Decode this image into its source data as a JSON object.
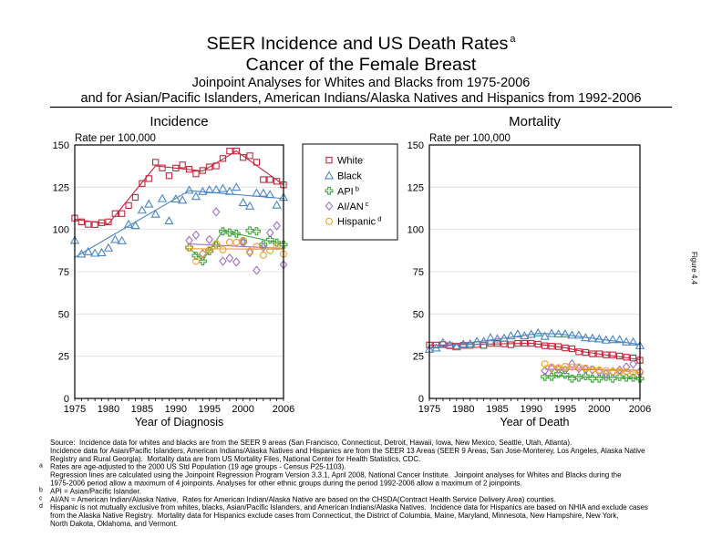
{
  "header": {
    "title": "SEER Incidence and US Death Rates",
    "title_sup": "a",
    "subtitle": "Cancer of the Female Breast",
    "description_line1": "Joinpoint Analyses for Whites and Blacks from 1975-2006",
    "description_line2": "and for Asian/Pacific Islanders, American Indians/Alaska Natives and Hispanics from 1992-2006"
  },
  "figure_label": "Figure 4.4",
  "legend": {
    "items": [
      {
        "label": "White",
        "sup": "",
        "marker": "square",
        "color": "#c1283c"
      },
      {
        "label": "Black",
        "sup": "",
        "marker": "triangle",
        "color": "#4a86c5"
      },
      {
        "label": "API",
        "sup": "b",
        "marker": "plus",
        "color": "#44a340"
      },
      {
        "label": "AI/AN",
        "sup": "c",
        "marker": "diamond",
        "color": "#a070c8"
      },
      {
        "label": "Hispanic",
        "sup": "d",
        "marker": "circle",
        "color": "#f0a030"
      }
    ]
  },
  "chart_data": [
    {
      "type": "scatter",
      "title": "Incidence",
      "ylabel": "Rate per 100,000",
      "xlabel": "Year of Diagnosis",
      "xlim": [
        1975,
        2006
      ],
      "ylim": [
        0,
        150
      ],
      "xticks": [
        1975,
        1980,
        1985,
        1990,
        1995,
        2000,
        2006
      ],
      "yticks": [
        0,
        25,
        50,
        75,
        100,
        125,
        150
      ],
      "grid": true,
      "legend_position": "right",
      "series": [
        {
          "name": "White",
          "marker": "square",
          "color": "#c1283c",
          "x": [
            1975,
            1976,
            1977,
            1978,
            1979,
            1980,
            1981,
            1982,
            1983,
            1984,
            1985,
            1986,
            1987,
            1988,
            1989,
            1990,
            1991,
            1992,
            1993,
            1994,
            1995,
            1996,
            1997,
            1998,
            1999,
            2000,
            2001,
            2002,
            2003,
            2004,
            2005,
            2006
          ],
          "values": [
            106.7,
            104.5,
            103.0,
            102.9,
            104.0,
            104.5,
            109.4,
            109.4,
            114.2,
            119.0,
            127.2,
            130.1,
            139.8,
            136.4,
            131.8,
            136.3,
            138.2,
            135.6,
            132.9,
            134.9,
            137.0,
            137.6,
            142.0,
            146.4,
            146.4,
            142.6,
            143.6,
            139.8,
            129.5,
            129.5,
            128.5,
            126.4
          ],
          "trend": {
            "x": [
              1975,
              1980,
              1987,
              1994,
              1999,
              2006
            ],
            "y": [
              106.0,
              103.3,
              137.6,
              134.6,
              146.4,
              126.4
            ]
          }
        },
        {
          "name": "Black",
          "marker": "triangle",
          "color": "#4a86c5",
          "x": [
            1975,
            1976,
            1977,
            1978,
            1979,
            1980,
            1981,
            1982,
            1983,
            1984,
            1985,
            1986,
            1987,
            1988,
            1989,
            1990,
            1991,
            1992,
            1993,
            1994,
            1995,
            1996,
            1997,
            1998,
            1999,
            2000,
            2001,
            2002,
            2003,
            2004,
            2005,
            2006
          ],
          "values": [
            93.5,
            85.4,
            86.8,
            85.9,
            86.2,
            89.0,
            94.0,
            93.3,
            103.0,
            102.3,
            111.4,
            115.0,
            109.0,
            118.2,
            105.0,
            118.0,
            117.3,
            123.2,
            119.5,
            122.4,
            123.4,
            123.5,
            124.2,
            122.5,
            124.9,
            115.8,
            113.8,
            121.5,
            121.4,
            120.6,
            114.4,
            119.0
          ],
          "trend": {
            "x": [
              1975,
              1992,
              2006
            ],
            "y": [
              83.5,
              123.0,
              118.3
            ]
          }
        },
        {
          "name": "API",
          "marker": "plus",
          "color": "#44a340",
          "x": [
            1992,
            1993,
            1994,
            1995,
            1996,
            1997,
            1998,
            1999,
            2000,
            2001,
            2002,
            2003,
            2004,
            2005,
            2006
          ],
          "values": [
            89.3,
            84.5,
            81.2,
            87.2,
            90.6,
            98.9,
            98.2,
            97.5,
            93.0,
            99.4,
            98.9,
            91.1,
            94.0,
            92.2,
            91.0
          ],
          "trend": {
            "x": [
              1992,
              1994,
              1997,
              2006
            ],
            "y": [
              89.0,
              81.6,
              99.2,
              91.4
            ]
          }
        },
        {
          "name": "AI/AN",
          "marker": "diamond",
          "color": "#a070c8",
          "x": [
            1992,
            1993,
            1994,
            1995,
            1996,
            1997,
            1998,
            1999,
            2000,
            2001,
            2002,
            2003,
            2004,
            2005,
            2006
          ],
          "values": [
            93.5,
            96.7,
            85.7,
            94.0,
            110.4,
            81.2,
            83.0,
            80.7,
            92.0,
            86.3,
            75.8,
            89.5,
            98.0,
            102.2,
            79.2
          ],
          "trend": {
            "x": [
              1992,
              2006
            ],
            "y": [
              91.4,
              88.8
            ]
          }
        },
        {
          "name": "Hispanic",
          "marker": "circle",
          "color": "#f0a030",
          "x": [
            1992,
            1993,
            1994,
            1995,
            1996,
            1997,
            1998,
            1999,
            2000,
            2001,
            2002,
            2003,
            2004,
            2005,
            2006
          ],
          "values": [
            89.0,
            81.2,
            85.4,
            88.0,
            91.5,
            88.0,
            92.4,
            92.4,
            93.5,
            87.2,
            89.9,
            84.8,
            87.5,
            89.9,
            85.5
          ],
          "trend": {
            "x": [
              1992,
              2006
            ],
            "y": [
              88.6,
              88.3
            ]
          }
        }
      ]
    },
    {
      "type": "scatter",
      "title": "Mortality",
      "ylabel": "Rate per 100,000",
      "xlabel": "Year of Death",
      "xlim": [
        1975,
        2006
      ],
      "ylim": [
        0,
        150
      ],
      "xticks": [
        1975,
        1980,
        1985,
        1990,
        1995,
        2000,
        2006
      ],
      "yticks": [
        0,
        25,
        50,
        75,
        100,
        125,
        150
      ],
      "grid": true,
      "legend_position": "left",
      "series": [
        {
          "name": "White",
          "marker": "square",
          "color": "#c1283c",
          "x": [
            1975,
            1976,
            1977,
            1978,
            1979,
            1980,
            1981,
            1982,
            1983,
            1984,
            1985,
            1986,
            1987,
            1988,
            1989,
            1990,
            1991,
            1992,
            1993,
            1994,
            1995,
            1996,
            1997,
            1998,
            1999,
            2000,
            2001,
            2002,
            2003,
            2004,
            2005,
            2006
          ],
          "values": [
            31.6,
            31.6,
            31.9,
            31.2,
            30.9,
            31.4,
            31.4,
            31.9,
            31.4,
            32.6,
            32.6,
            32.3,
            31.8,
            32.6,
            32.6,
            32.6,
            32.1,
            31.2,
            30.9,
            30.7,
            29.9,
            29.4,
            27.6,
            27.2,
            26.4,
            26.4,
            25.8,
            25.8,
            25.1,
            24.4,
            24.0,
            22.6
          ],
          "trend": {
            "x": [
              1975,
              1990,
              1995,
              1998,
              2006
            ],
            "y": [
              31.5,
              32.7,
              30.0,
              27.4,
              23.0
            ]
          }
        },
        {
          "name": "Black",
          "marker": "triangle",
          "color": "#4a86c5",
          "x": [
            1975,
            1976,
            1977,
            1978,
            1979,
            1980,
            1981,
            1982,
            1983,
            1984,
            1985,
            1986,
            1987,
            1988,
            1989,
            1990,
            1991,
            1992,
            1993,
            1994,
            1995,
            1996,
            1997,
            1998,
            1999,
            2000,
            2001,
            2002,
            2003,
            2004,
            2005,
            2006
          ],
          "values": [
            29.1,
            29.8,
            33.0,
            31.6,
            30.5,
            32.1,
            32.3,
            33.7,
            33.7,
            35.9,
            35.2,
            35.6,
            37.0,
            38.1,
            37.0,
            37.9,
            38.8,
            36.7,
            38.4,
            38.1,
            38.1,
            37.4,
            37.4,
            35.9,
            35.6,
            35.2,
            34.5,
            34.8,
            34.8,
            33.4,
            33.4,
            31.2
          ],
          "trend": {
            "x": [
              1975,
              1991,
              1994,
              2006
            ],
            "y": [
              29.6,
              38.4,
              38.2,
              32.0
            ]
          }
        },
        {
          "name": "API",
          "marker": "plus",
          "color": "#44a340",
          "x": [
            1992,
            1993,
            1994,
            1995,
            1996,
            1997,
            1998,
            1999,
            2000,
            2001,
            2002,
            2003,
            2004,
            2005,
            2006
          ],
          "values": [
            12.8,
            12.8,
            14.6,
            14.1,
            11.7,
            12.3,
            13.2,
            11.7,
            11.7,
            12.8,
            11.7,
            12.8,
            12.3,
            12.3,
            11.7
          ],
          "trend": {
            "x": [
              1992,
              2006
            ],
            "y": [
              13.3,
              12.0
            ]
          }
        },
        {
          "name": "AI/AN",
          "marker": "diamond",
          "color": "#a070c8",
          "x": [
            1992,
            1993,
            1994,
            1995,
            1996,
            1997,
            1998,
            1999,
            2000,
            2001,
            2002,
            2003,
            2004,
            2005,
            2006
          ],
          "values": [
            16.4,
            17.7,
            17.2,
            16.8,
            20.4,
            17.7,
            17.2,
            16.8,
            15.9,
            14.6,
            15.9,
            16.8,
            18.6,
            20.4,
            15.9
          ],
          "trend": {
            "x": [
              1992,
              2006
            ],
            "y": [
              17.3,
              16.7
            ]
          }
        },
        {
          "name": "Hispanic",
          "marker": "circle",
          "color": "#f0a030",
          "x": [
            1992,
            1993,
            1994,
            1995,
            1996,
            1997,
            1998,
            1999,
            2000,
            2001,
            2002,
            2003,
            2004,
            2005,
            2006
          ],
          "values": [
            20.4,
            18.6,
            18.2,
            18.9,
            18.6,
            18.6,
            18.0,
            17.3,
            16.8,
            16.5,
            15.9,
            15.9,
            15.9,
            15.3,
            15.3
          ],
          "trend": {
            "x": [
              1992,
              2006
            ],
            "y": [
              19.4,
              15.4
            ]
          }
        }
      ]
    }
  ],
  "footnotes": [
    {
      "marker": "",
      "text": "Source:  Incidence data for whites and blacks are from the SEER 9 areas (San Francisco, Connecticut, Detroit, Hawaii, Iowa, New Mexico, Seattle, Utah, Atlanta)."
    },
    {
      "marker": "",
      "text": "Incidence data for Asian/Pacific Islanders, American Indians/Alaska Natives and Hispanics are from the SEER 13 Areas (SEER 9 Areas, San Jose-Monterey, Los Angeles, Alaska Native"
    },
    {
      "marker": "",
      "text": "Registry and Rural Georgia).  Mortality data are from US Mortality Files, National Center for Health Statistics, CDC."
    },
    {
      "marker": "a",
      "text": "Rates are age-adjusted to the 2000 US Std Population (19 age groups - Census P25-1103)."
    },
    {
      "marker": "",
      "text": "Regression lines are calculated using the Joinpoint Regression Program Version 3.3.1, April 2008, National Cancer Institute.  Joinpoint analyses for Whites and Blacks during the"
    },
    {
      "marker": "",
      "text": "1975-2006 period allow a maximum of 4 joinpoints. Analyses for other ethnic groups during the period 1992-2006 allow a maximum of 2 joinpoints."
    },
    {
      "marker": "b",
      "text": "API = Asian/Pacific Islander."
    },
    {
      "marker": "c",
      "text": "AI/AN = American Indian/Alaska Native.  Rates for American Indian/Alaska Native are based on the CHSDA(Contract Health Service Delivery Area) counties."
    },
    {
      "marker": "d",
      "text": "Hispanic is not mutually exclusive from whites, blacks, Asian/Pacific Islanders, and American Indians/Alaska Natives.  Incidence data for Hispanics are based on NHIA and exclude cases"
    },
    {
      "marker": "",
      "text": "from the Alaska Native Registry.  Mortality data for Hispanics exclude cases from Connecticut, the District of Columbia, Maine, Maryland, Minnesota, New Hampshire, New York,"
    },
    {
      "marker": "",
      "text": "North Dakota, Oklahoma, and Vermont."
    }
  ]
}
